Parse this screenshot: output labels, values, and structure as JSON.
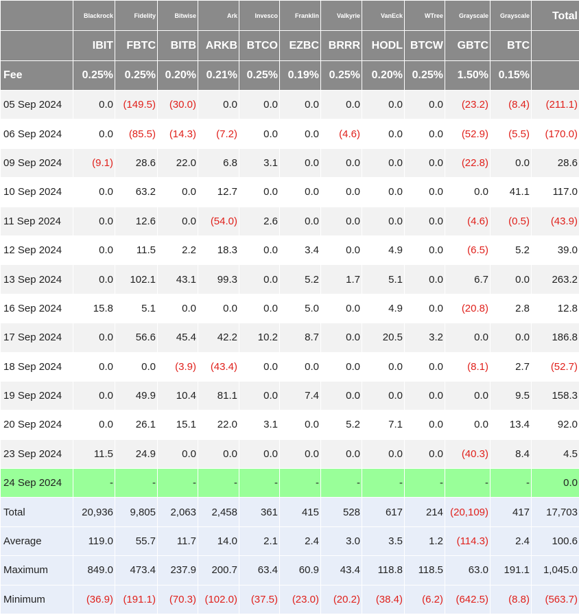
{
  "header": {
    "issuers": [
      "Blackrock",
      "Fidelity",
      "Bitwise",
      "Ark",
      "Invesco",
      "Franklin",
      "Valkyrie",
      "VanEck",
      "WTree",
      "Grayscale",
      "Grayscale"
    ],
    "tickers": [
      "IBIT",
      "FBTC",
      "BITB",
      "ARKB",
      "BTCO",
      "EZBC",
      "BRRR",
      "HODL",
      "BTCW",
      "GBTC",
      "BTC"
    ],
    "fee_label": "Fee",
    "fees": [
      "0.25%",
      "0.25%",
      "0.20%",
      "0.21%",
      "0.25%",
      "0.19%",
      "0.25%",
      "0.20%",
      "0.25%",
      "1.50%",
      "0.15%"
    ],
    "total_label": "Total"
  },
  "days": [
    {
      "date": "05 Sep 2024",
      "values": [
        "0.0",
        "(149.5)",
        "(30.0)",
        "0.0",
        "0.0",
        "0.0",
        "0.0",
        "0.0",
        "0.0",
        "(23.2)",
        "(8.4)",
        "(211.1)"
      ]
    },
    {
      "date": "06 Sep 2024",
      "values": [
        "0.0",
        "(85.5)",
        "(14.3)",
        "(7.2)",
        "0.0",
        "0.0",
        "(4.6)",
        "0.0",
        "0.0",
        "(52.9)",
        "(5.5)",
        "(170.0)"
      ]
    },
    {
      "date": "09 Sep 2024",
      "values": [
        "(9.1)",
        "28.6",
        "22.0",
        "6.8",
        "3.1",
        "0.0",
        "0.0",
        "0.0",
        "0.0",
        "(22.8)",
        "0.0",
        "28.6"
      ]
    },
    {
      "date": "10 Sep 2024",
      "values": [
        "0.0",
        "63.2",
        "0.0",
        "12.7",
        "0.0",
        "0.0",
        "0.0",
        "0.0",
        "0.0",
        "0.0",
        "41.1",
        "117.0"
      ]
    },
    {
      "date": "11 Sep 2024",
      "values": [
        "0.0",
        "12.6",
        "0.0",
        "(54.0)",
        "2.6",
        "0.0",
        "0.0",
        "0.0",
        "0.0",
        "(4.6)",
        "(0.5)",
        "(43.9)"
      ]
    },
    {
      "date": "12 Sep 2024",
      "values": [
        "0.0",
        "11.5",
        "2.2",
        "18.3",
        "0.0",
        "3.4",
        "0.0",
        "4.9",
        "0.0",
        "(6.5)",
        "5.2",
        "39.0"
      ]
    },
    {
      "date": "13 Sep 2024",
      "values": [
        "0.0",
        "102.1",
        "43.1",
        "99.3",
        "0.0",
        "5.2",
        "1.7",
        "5.1",
        "0.0",
        "6.7",
        "0.0",
        "263.2"
      ]
    },
    {
      "date": "16 Sep 2024",
      "values": [
        "15.8",
        "5.1",
        "0.0",
        "0.0",
        "0.0",
        "5.0",
        "0.0",
        "4.9",
        "0.0",
        "(20.8)",
        "2.8",
        "12.8"
      ]
    },
    {
      "date": "17 Sep 2024",
      "values": [
        "0.0",
        "56.6",
        "45.4",
        "42.2",
        "10.2",
        "8.7",
        "0.0",
        "20.5",
        "3.2",
        "0.0",
        "0.0",
        "186.8"
      ]
    },
    {
      "date": "18 Sep 2024",
      "values": [
        "0.0",
        "0.0",
        "(3.9)",
        "(43.4)",
        "0.0",
        "0.0",
        "0.0",
        "0.0",
        "0.0",
        "(8.1)",
        "2.7",
        "(52.7)"
      ]
    },
    {
      "date": "19 Sep 2024",
      "values": [
        "0.0",
        "49.9",
        "10.4",
        "81.1",
        "0.0",
        "7.4",
        "0.0",
        "0.0",
        "0.0",
        "0.0",
        "9.5",
        "158.3"
      ]
    },
    {
      "date": "20 Sep 2024",
      "values": [
        "0.0",
        "26.1",
        "15.1",
        "22.0",
        "3.1",
        "0.0",
        "5.2",
        "7.1",
        "0.0",
        "0.0",
        "13.4",
        "92.0"
      ]
    },
    {
      "date": "23 Sep 2024",
      "values": [
        "11.5",
        "24.9",
        "0.0",
        "0.0",
        "0.0",
        "0.0",
        "0.0",
        "0.0",
        "0.0",
        "(40.3)",
        "8.4",
        "4.5"
      ]
    },
    {
      "date": "24 Sep 2024",
      "values": [
        "-",
        "-",
        "-",
        "-",
        "-",
        "-",
        "-",
        "-",
        "-",
        "-",
        "-",
        "0.0"
      ]
    }
  ],
  "stats": [
    {
      "label": "Total",
      "values": [
        "20,936",
        "9,805",
        "2,063",
        "2,458",
        "361",
        "415",
        "528",
        "617",
        "214",
        "(20,109)",
        "417",
        "17,703"
      ]
    },
    {
      "label": "Average",
      "values": [
        "119.0",
        "55.7",
        "11.7",
        "14.0",
        "2.1",
        "2.4",
        "3.0",
        "3.5",
        "1.2",
        "(114.3)",
        "2.4",
        "100.6"
      ]
    },
    {
      "label": "Maximum",
      "values": [
        "849.0",
        "473.4",
        "237.9",
        "200.7",
        "63.4",
        "60.9",
        "43.4",
        "118.8",
        "118.5",
        "63.0",
        "191.1",
        "1,045.0"
      ]
    },
    {
      "label": "Minimum",
      "values": [
        "(36.9)",
        "(191.1)",
        "(70.3)",
        "(102.0)",
        "(37.5)",
        "(23.0)",
        "(20.2)",
        "(38.4)",
        "(6.2)",
        "(642.5)",
        "(8.8)",
        "(563.7)"
      ]
    }
  ],
  "colors": {
    "header_bg": "#8a8a8a",
    "row_alt_bg": "#f2f2f2",
    "today_bg": "#99ff99",
    "stats_bg": "#e8eef9",
    "negative": "#e0201b"
  }
}
